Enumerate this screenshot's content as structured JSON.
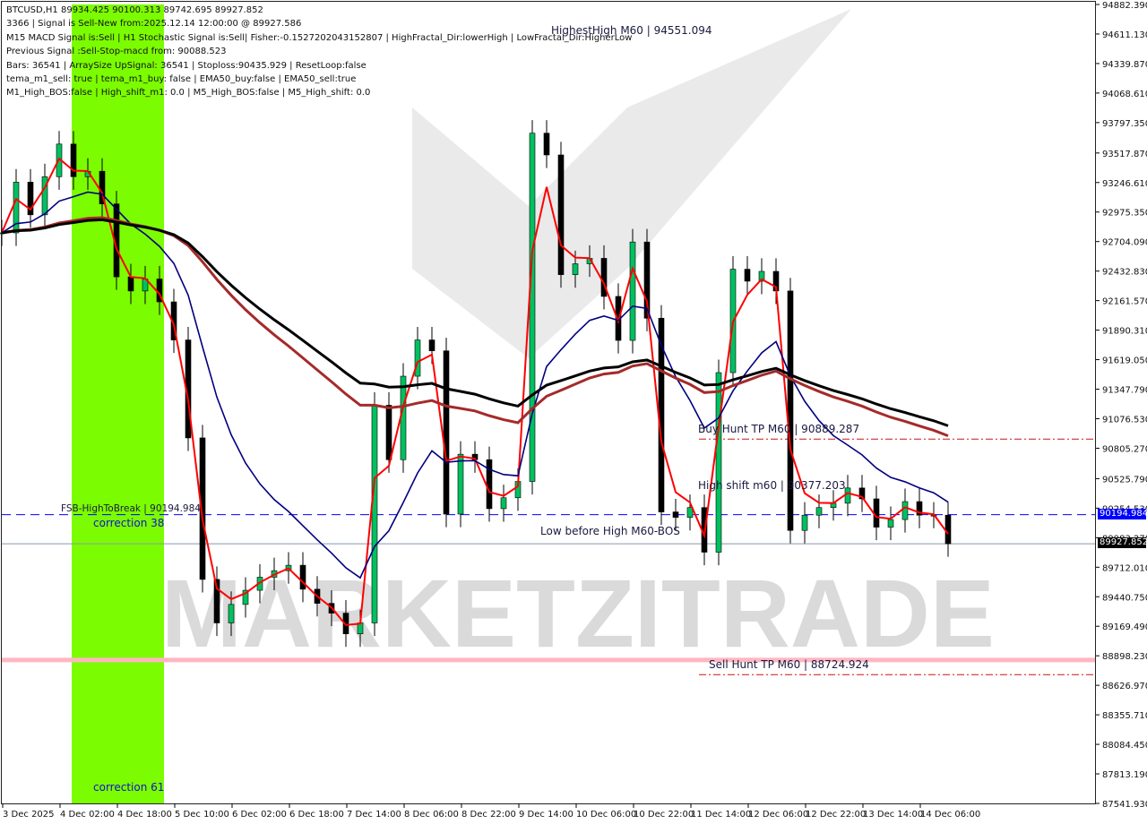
{
  "header": {
    "lines": [
      "BTCUSD,H1  89934.425 90100.313 89742.695 89927.852",
      "3366 | Signal is Sell-New from:2025.12.14 12:00:00 @ 89927.586",
      "M15 MACD Signal is:Sell | H1 Stochastic Signal is:Sell| Fisher:-0.152720204315​2807 | HighFractal_Dir:lowerHigh | LowFractal_Dir:HigherLow",
      "Previous Signal :Sell-Stop-macd from: 90088.523",
      "Bars: 36541 | ArraySize UpSignal: 36541 | Stoploss:90435.929 | ResetLoop:false",
      "tema_m1_sell: true | tema_m1_buy: false | EMA50_buy:false | EMA50_sell:true",
      "M1_High_BOS:false | High_shift_m1: 0.0 | M5_High_BOS:false | M5_High_shift: 0.0"
    ]
  },
  "annotations": {
    "highest_high": "HighestHigh    M60 | 94551.094",
    "buy_hunt": "Buy Hunt TP M60 | 90889.287",
    "high_shift": "High shift m60 | 90377.203",
    "fsb": "FSB-HighToBreak | 90194.984",
    "correction38": "correction 38",
    "correction61": "correction 61",
    "low_before_high": "Low before High    M60-BOS",
    "sell_hunt": "Sell Hunt TP M60 | 88724.924"
  },
  "watermark": "MARKETZITRADE",
  "chart_data": {
    "type": "candlestick",
    "symbol": "BTCUSD",
    "timeframe": "H1",
    "ylim": [
      87541.93,
      94882.39
    ],
    "y_ticks": [
      "94882.390",
      "94611.130",
      "94339.870",
      "94068.610",
      "93797.350",
      "93517.870",
      "93246.610",
      "92975.350",
      "92704.090",
      "92432.830",
      "92161.570",
      "91890.310",
      "91619.050",
      "91347.790",
      "91076.530",
      "90805.270",
      "90525.790",
      "90254.530",
      "89983.270",
      "89712.010",
      "89440.750",
      "89169.490",
      "88898.230",
      "88626.970",
      "88355.710",
      "88084.450",
      "87813.190",
      "87541.930"
    ],
    "x_ticks": [
      "3 Dec 2025",
      "4 Dec 02:00",
      "4 Dec 18:00",
      "5 Dec 10:00",
      "6 Dec 02:00",
      "6 Dec 18:00",
      "7 Dec 14:00",
      "8 Dec 06:00",
      "8 Dec 22:00",
      "9 Dec 14:00",
      "10 Dec 06:00",
      "10 Dec 22:00",
      "11 Dec 14:00",
      "12 Dec 06:00",
      "12 Dec 22:00",
      "13 Dec 14:00",
      "14 Dec 06:00"
    ],
    "series_start": "3 Dec 2025 10:00",
    "series_interval": "4h",
    "closes": [
      92784,
      93250,
      92950,
      93300,
      93600,
      93300,
      93350,
      93050,
      92380,
      92250,
      92360,
      92150,
      91800,
      90900,
      89600,
      89200,
      89370,
      89500,
      89620,
      89680,
      89730,
      89510,
      89380,
      89290,
      89100,
      89200,
      91200,
      90700,
      91467,
      91800,
      91700,
      90200,
      90750,
      90700,
      90250,
      90350,
      90500,
      93700,
      93500,
      92400,
      92500,
      92550,
      92200,
      91796,
      92700,
      92000,
      90220,
      90170,
      90260,
      89850,
      91500,
      92450,
      92340,
      92430,
      92250,
      90050,
      90190,
      90260,
      90300,
      90440,
      90340,
      90080,
      90150,
      90315,
      90190,
      90190,
      89928
    ],
    "levels": {
      "current_price": {
        "value": 89927.852,
        "label": "89927.852",
        "color": "#000000"
      },
      "fsb_high_to_break": {
        "value": 90194.984,
        "label": "90194.984",
        "color": "#0000ff"
      },
      "buy_hunt_tp": {
        "value": 90889.287,
        "color": "#d01010"
      },
      "sell_hunt_tp": {
        "value": 88724.924,
        "color": "#d01010"
      },
      "pink_zone": {
        "value": 88860,
        "color": "#ffb6c1"
      }
    },
    "colors": {
      "bull": "#00c060",
      "bear": "#000000",
      "fast_ema": "#ff0000",
      "mid_ema": "#00007f",
      "slow_ema": "#000000",
      "slow_ema2": "#a52a2a",
      "correction_zone": "#7cfc00"
    }
  }
}
